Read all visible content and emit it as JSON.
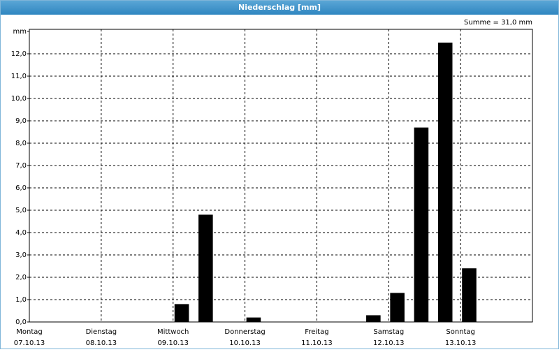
{
  "chart_data": {
    "type": "bar",
    "title": "Niederschlag [mm]",
    "annotation": "Summe = 31,0 mm",
    "categories": [
      "Montag",
      null,
      null,
      "Dienstag",
      null,
      null,
      "Mittwoch",
      null,
      null,
      "Donnerstag",
      null,
      null,
      "Freitag",
      null,
      null,
      "Samstag",
      null,
      null,
      "Sonntag",
      null,
      null
    ],
    "category_dates": [
      "07.10.13",
      null,
      null,
      "08.10.13",
      null,
      null,
      "09.10.13",
      null,
      null,
      "10.10.13",
      null,
      null,
      "11.10.13",
      null,
      null,
      "12.10.13",
      null,
      null,
      "13.10.13",
      null,
      null
    ],
    "values": [
      0,
      0,
      0,
      0,
      0,
      0,
      0.8,
      4.8,
      0,
      0.2,
      0,
      0,
      0,
      0,
      0.3,
      1.3,
      8.7,
      12.5,
      2.4,
      0,
      0
    ],
    "color": "#000000",
    "ylim": [
      0,
      13
    ],
    "yticks": [
      {
        "value": 0,
        "label": "0,0"
      },
      {
        "value": 1,
        "label": "1,0"
      },
      {
        "value": 2,
        "label": "2,0"
      },
      {
        "value": 3,
        "label": "3,0"
      },
      {
        "value": 4,
        "label": "4,0"
      },
      {
        "value": 5,
        "label": "5,0"
      },
      {
        "value": 6,
        "label": "6,0"
      },
      {
        "value": 7,
        "label": "7,0"
      },
      {
        "value": 8,
        "label": "8,0"
      },
      {
        "value": 9,
        "label": "9,0"
      },
      {
        "value": 10,
        "label": "10,0"
      },
      {
        "value": 11,
        "label": "11,0"
      },
      {
        "value": 12,
        "label": "12,0"
      },
      {
        "value": 13,
        "label": "mm"
      }
    ],
    "grid": true
  }
}
